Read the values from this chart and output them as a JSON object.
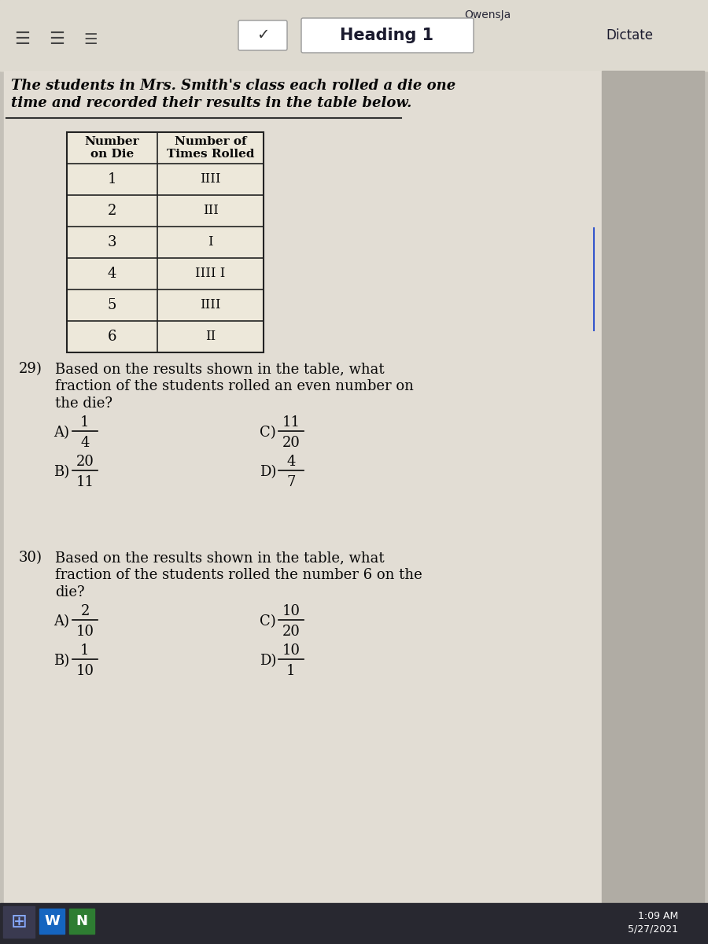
{
  "title_bar_text": "OwensJa",
  "heading_text": "Heading 1",
  "dictate_text": "Dictate",
  "intro_line1": "The students in Mrs. Smith's class each rolled a die one",
  "intro_line2": "time and recorded their results in the table below.",
  "table_headers": [
    "Number\non Die",
    "Number of\nTimes Rolled"
  ],
  "table_rows": [
    [
      "1",
      "IIII"
    ],
    [
      "2",
      "III"
    ],
    [
      "3",
      "I"
    ],
    [
      "4",
      "IIII I"
    ],
    [
      "5",
      "IIII"
    ],
    [
      "6",
      "II"
    ]
  ],
  "q29_number": "29)",
  "q29_line1": "Based on the results shown in the table, what",
  "q29_line2": "fraction of the students rolled an even number on",
  "q29_line3": "the die?",
  "q29_A_top": "1",
  "q29_A_bot": "4",
  "q29_B_top": "20",
  "q29_B_bot": "11",
  "q29_C_top": "11",
  "q29_C_bot": "20",
  "q29_D_top": "4",
  "q29_D_bot": "7",
  "q30_number": "30)",
  "q30_line1": "Based on the results shown in the table, what",
  "q30_line2": "fraction of the students rolled the number 6 on the",
  "q30_line3": "die?",
  "q30_A_top": "2",
  "q30_A_bot": "10",
  "q30_B_top": "1",
  "q30_B_bot": "10",
  "q30_C_top": "10",
  "q30_C_bot": "20",
  "q30_D_top": "10",
  "q30_D_bot": "1",
  "timestamp": "1:09 AM",
  "date": "5/27/2021"
}
